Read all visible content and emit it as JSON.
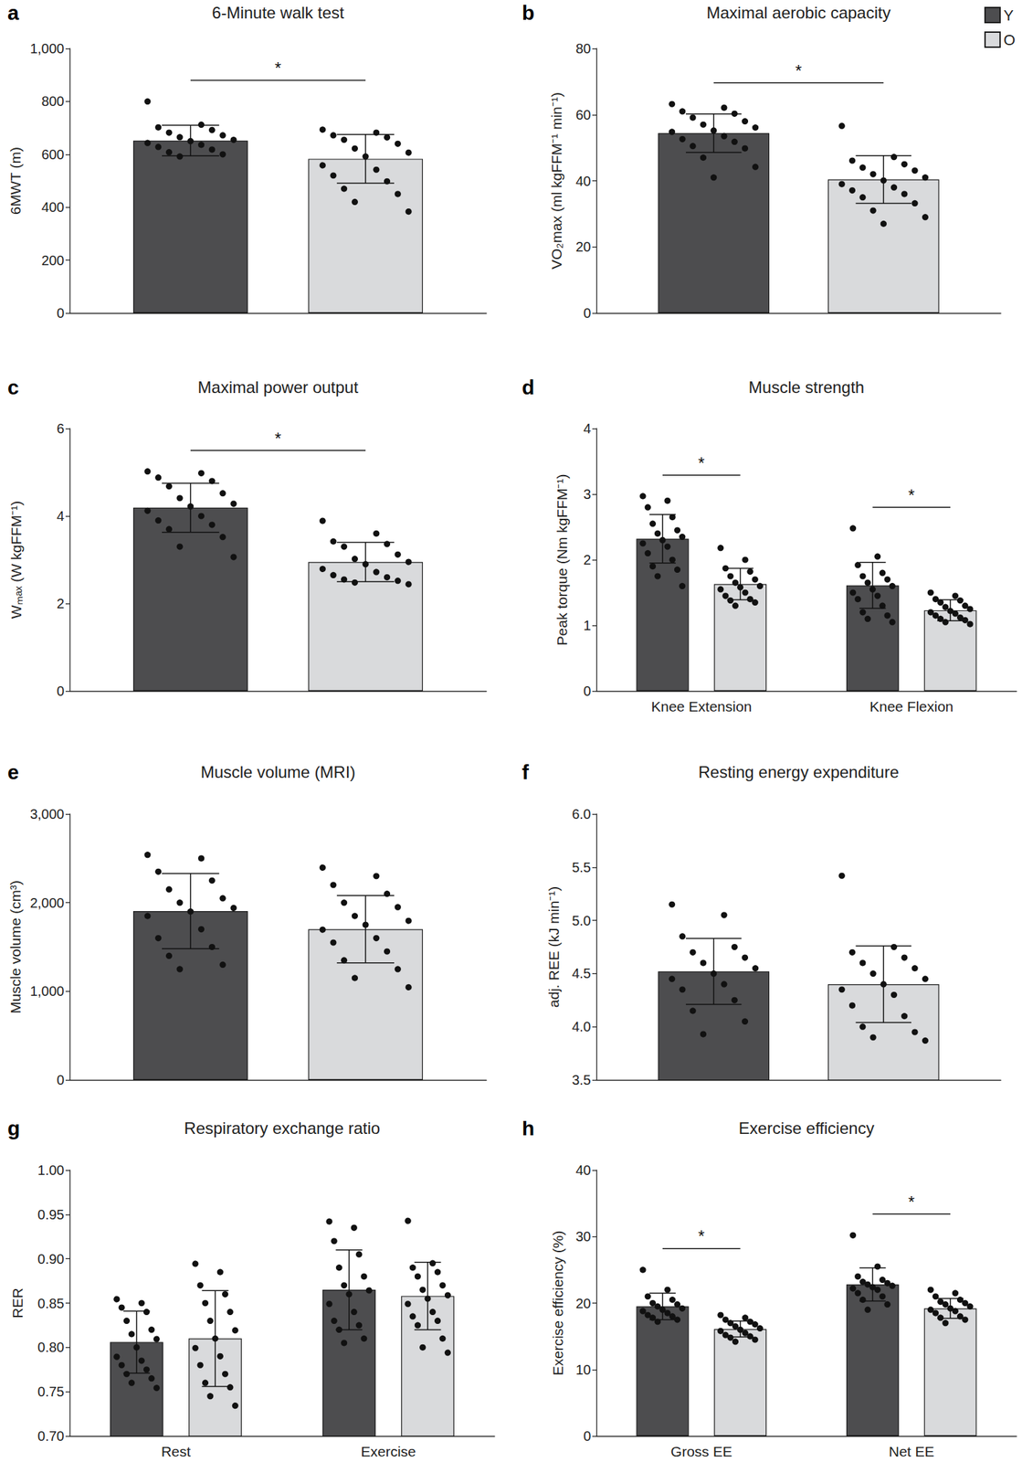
{
  "chart_data": [
    {
      "type": "bar",
      "panel": "a",
      "title": "6-Minute walk test",
      "y_label": "6MWT (m)",
      "categories": [
        null
      ],
      "series": [
        {
          "name": "Y",
          "color": "#4d4d4f",
          "values": [
            652
          ],
          "errors": [
            58
          ],
          "points": [
            [
              800,
              712,
              702,
              692,
              682,
              672,
              665,
              658,
              650,
              643,
              636,
              628,
              618,
              608,
              600,
              592
            ]
          ]
        },
        {
          "name": "O",
          "color": "#d9dadc",
          "values": [
            583
          ],
          "errors": [
            92
          ],
          "points": [
            [
              695,
              682,
              672,
              664,
              655,
              640,
              622,
              608,
              592,
              560,
              542,
              520,
              498,
              470,
              450,
              420,
              385
            ]
          ]
        }
      ],
      "ylim": [
        0,
        1000
      ],
      "yticks": [
        0,
        200,
        400,
        600,
        800,
        {
          "value": 1000,
          "label": "1,000"
        }
      ],
      "grid": false,
      "annotations": [
        "*"
      ]
    },
    {
      "type": "bar",
      "panel": "b",
      "title": "Maximal aerobic capacity",
      "y_label": "VO₂max (ml kgFFM⁻¹ min⁻¹)",
      "categories": [
        null
      ],
      "series": [
        {
          "name": "Y",
          "color": "#4d4d4f",
          "values": [
            54.4
          ],
          "errors": [
            5.8
          ],
          "points": [
            [
              63.2,
              62.1,
              61.0,
              60.3,
              59.1,
              58.0,
              57.0,
              56.1,
              55.2,
              54.8,
              53.5,
              52.6,
              51.8,
              50.5,
              49.8,
              47.0,
              44.2,
              41.0
            ]
          ]
        },
        {
          "name": "O",
          "color": "#d9dadc",
          "values": [
            40.4
          ],
          "errors": [
            7.2
          ],
          "points": [
            [
              56.6,
              47.2,
              46.1,
              45.0,
              44.0,
              43.1,
              42.0,
              41.0,
              40.1,
              39.0,
              38.0,
              37.1,
              36.0,
              35.0,
              33.2,
              31.0,
              29.0,
              27.0
            ]
          ]
        }
      ],
      "ylim": [
        0,
        80
      ],
      "yticks": [
        0,
        20,
        40,
        60,
        80
      ],
      "grid": false,
      "annotations": [
        "*"
      ],
      "legend": "upper right"
    },
    {
      "type": "bar",
      "panel": "c",
      "title": "Maximal power output",
      "y_label": "Wₘₐₓ (W kgFFM⁻¹)",
      "categories": [
        null
      ],
      "series": [
        {
          "name": "Y",
          "color": "#4d4d4f",
          "values": [
            4.19
          ],
          "errors": [
            0.56
          ],
          "points": [
            [
              5.02,
              4.98,
              4.88,
              4.8,
              4.68,
              4.52,
              4.41,
              4.3,
              4.22,
              4.12,
              4.0,
              3.9,
              3.8,
              3.7,
              3.52,
              3.3,
              3.08
            ]
          ]
        },
        {
          "name": "O",
          "color": "#d9dadc",
          "values": [
            2.95
          ],
          "errors": [
            0.45
          ],
          "points": [
            [
              3.9,
              3.6,
              3.42,
              3.36,
              3.3,
              3.12,
              3.02,
              2.96,
              2.9,
              2.8,
              2.72,
              2.65,
              2.6,
              2.55,
              2.52,
              2.48,
              2.45
            ]
          ]
        }
      ],
      "ylim": [
        0,
        6
      ],
      "yticks": [
        0,
        2,
        4,
        6
      ],
      "grid": false,
      "annotations": [
        "*"
      ]
    },
    {
      "type": "bar",
      "panel": "d",
      "title": "Muscle strength",
      "y_label": "Peak torque (Nm kgFFM⁻¹)",
      "categories": [
        "Knee Extension",
        "Knee Flexion"
      ],
      "series": [
        {
          "name": "Y",
          "color": "#4d4d4f",
          "values": [
            2.32,
            1.61
          ],
          "errors": [
            0.37,
            0.35
          ],
          "points": [
            [
              2.97,
              2.9,
              2.8,
              2.65,
              2.55,
              2.45,
              2.4,
              2.35,
              2.3,
              2.25,
              2.2,
              2.1,
              2.0,
              1.9,
              1.85,
              1.75,
              1.6
            ],
            [
              2.48,
              2.05,
              1.92,
              1.8,
              1.75,
              1.7,
              1.65,
              1.6,
              1.55,
              1.5,
              1.45,
              1.4,
              1.3,
              1.2,
              1.15,
              1.1,
              1.05
            ]
          ]
        },
        {
          "name": "O",
          "color": "#d9dadc",
          "values": [
            1.63,
            1.23
          ],
          "errors": [
            0.24,
            0.16
          ],
          "points": [
            [
              2.18,
              2.0,
              1.87,
              1.82,
              1.75,
              1.7,
              1.65,
              1.6,
              1.58,
              1.55,
              1.5,
              1.45,
              1.4,
              1.38,
              1.35,
              1.3
            ],
            [
              1.5,
              1.45,
              1.4,
              1.38,
              1.35,
              1.3,
              1.28,
              1.25,
              1.22,
              1.2,
              1.18,
              1.15,
              1.12,
              1.1,
              1.08,
              1.05,
              1.02
            ]
          ]
        }
      ],
      "ylim": [
        0,
        4
      ],
      "yticks": [
        0,
        1,
        2,
        3,
        4
      ],
      "grid": false,
      "annotations": [
        "*",
        "*"
      ]
    },
    {
      "type": "bar",
      "panel": "e",
      "title": "Muscle volume (MRI)",
      "y_label": "Muscle volume (cm³)",
      "categories": [
        null
      ],
      "series": [
        {
          "name": "Y",
          "color": "#4d4d4f",
          "values": [
            1905
          ],
          "errors": [
            425
          ],
          "points": [
            [
              2540,
              2500,
              2350,
              2250,
              2150,
              2050,
              2000,
              1950,
              1900,
              1850,
              1700,
              1600,
              1500,
              1400,
              1300,
              1250
            ]
          ]
        },
        {
          "name": "O",
          "color": "#d9dadc",
          "values": [
            1700
          ],
          "errors": [
            380
          ],
          "points": [
            [
              2400,
              2300,
              2200,
              2100,
              2000,
              1950,
              1850,
              1800,
              1750,
              1700,
              1600,
              1550,
              1450,
              1350,
              1250,
              1150,
              1050
            ]
          ]
        }
      ],
      "ylim": [
        0,
        3000
      ],
      "yticks": [
        0,
        {
          "value": 1000,
          "label": "1,000"
        },
        {
          "value": 2000,
          "label": "2,000"
        },
        {
          "value": 3000,
          "label": "3,000"
        }
      ],
      "grid": false
    },
    {
      "type": "bar",
      "panel": "f",
      "title": "Resting energy expenditure",
      "y_label": "adj. REE (kJ min⁻¹)",
      "categories": [
        null
      ],
      "series": [
        {
          "name": "Y",
          "color": "#4d4d4f",
          "values": [
            4.52
          ],
          "errors": [
            0.31
          ],
          "points": [
            [
              5.15,
              5.05,
              4.85,
              4.75,
              4.7,
              4.65,
              4.6,
              4.55,
              4.5,
              4.45,
              4.4,
              4.35,
              4.25,
              4.15,
              4.05,
              3.93
            ]
          ]
        },
        {
          "name": "O",
          "color": "#d9dadc",
          "values": [
            4.4
          ],
          "errors": [
            0.36
          ],
          "points": [
            [
              5.42,
              4.75,
              4.7,
              4.65,
              4.6,
              4.55,
              4.5,
              4.45,
              4.4,
              4.35,
              4.3,
              4.2,
              4.1,
              4.0,
              3.95,
              3.9,
              3.87
            ]
          ]
        }
      ],
      "ylim": [
        3.5,
        6
      ],
      "yticks": [
        3.5,
        {
          "value": 4,
          "label": "4.0"
        },
        4.5,
        {
          "value": 5,
          "label": "5.0"
        },
        5.5,
        {
          "value": 6,
          "label": "6.0"
        }
      ],
      "grid": false
    },
    {
      "type": "bar",
      "panel": "g",
      "title": "Respiratory exchange ratio",
      "y_label": "RER",
      "categories": [
        "Rest",
        "Exercise"
      ],
      "series": [
        {
          "name": "Y",
          "color": "#4d4d4f",
          "values": [
            0.806,
            0.865
          ],
          "errors": [
            0.035,
            0.045
          ],
          "points": [
            [
              0.855,
              0.85,
              0.845,
              0.84,
              0.83,
              0.82,
              0.815,
              0.81,
              0.8,
              0.79,
              0.785,
              0.78,
              0.775,
              0.77,
              0.765,
              0.76,
              0.755
            ],
            [
              0.943,
              0.935,
              0.92,
              0.905,
              0.89,
              0.88,
              0.87,
              0.865,
              0.86,
              0.85,
              0.84,
              0.83,
              0.825,
              0.82,
              0.81,
              0.805
            ]
          ]
        },
        {
          "name": "O",
          "color": "#d9dadc",
          "values": [
            0.81,
            0.858
          ],
          "errors": [
            0.054,
            0.038
          ],
          "points": [
            [
              0.895,
              0.885,
              0.87,
              0.86,
              0.85,
              0.84,
              0.83,
              0.82,
              0.81,
              0.8,
              0.79,
              0.78,
              0.77,
              0.76,
              0.755,
              0.745,
              0.735
            ],
            [
              0.944,
              0.895,
              0.89,
              0.885,
              0.88,
              0.87,
              0.865,
              0.86,
              0.855,
              0.85,
              0.84,
              0.835,
              0.83,
              0.825,
              0.81,
              0.8,
              0.795
            ]
          ]
        }
      ],
      "ylim": [
        0.7,
        1
      ],
      "yticks": [
        {
          "value": 0.7,
          "label": "0.70"
        },
        0.75,
        {
          "value": 0.8,
          "label": "0.80"
        },
        0.85,
        {
          "value": 0.9,
          "label": "0.90"
        },
        0.95,
        {
          "value": 1,
          "label": "1.00"
        }
      ],
      "grid": false
    },
    {
      "type": "bar",
      "panel": "h",
      "title": "Exercise efficiency",
      "y_label": "Exercise efficiency (%)",
      "categories": [
        "Gross EE",
        "Net EE"
      ],
      "series": [
        {
          "name": "Y",
          "color": "#4d4d4f",
          "values": [
            19.5,
            22.8
          ],
          "errors": [
            2.0,
            2.5
          ],
          "points": [
            [
              25,
              22,
              21,
              20.5,
              20,
              19.8,
              19.5,
              19.2,
              19,
              18.8,
              18.5,
              18.2,
              18,
              17.8,
              17.5,
              17.2
            ],
            [
              30.2,
              25.5,
              24,
              23.5,
              23.2,
              23,
              22.8,
              22.6,
              22.4,
              22.2,
              22,
              21.5,
              21,
              20.5,
              19.8,
              19
            ]
          ]
        },
        {
          "name": "O",
          "color": "#d9dadc",
          "values": [
            16.1,
            19.2
          ],
          "errors": [
            1.2,
            1.5
          ],
          "points": [
            [
              18.2,
              17.8,
              17.5,
              17.2,
              17,
              16.8,
              16.5,
              16.2,
              16,
              15.8,
              15.5,
              15.2,
              15,
              14.8,
              14.5,
              14.2
            ],
            [
              22,
              21.5,
              21,
              20.5,
              20.2,
              20,
              19.8,
              19.5,
              19.2,
              19,
              18.8,
              18.5,
              18,
              17.8,
              17.5,
              17
            ]
          ]
        }
      ],
      "ylim": [
        0,
        40
      ],
      "yticks": [
        0,
        10,
        20,
        30,
        40
      ],
      "grid": false,
      "annotations": [
        "*",
        "*"
      ]
    }
  ]
}
